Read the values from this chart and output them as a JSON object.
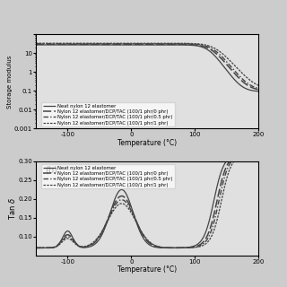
{
  "xlabel": "Temperature (°C)",
  "ylabel_a": "Storage modulus",
  "ylabel_b": "Tan δ",
  "xlim": [
    -150,
    200
  ],
  "ylim_a": [
    0.001,
    100
  ],
  "ylim_b": [
    0.05,
    0.3
  ],
  "legend_labels": [
    "Neat nylon 12 elastomer",
    "Nylon 12 elastomer/DCP/TAC (100/1 phr/0 phr)",
    "Nylon 12 elastomer/DCP/TAC (100/1 phr/0.5 phr)",
    "Nylon 12 elastomer/DCP/TAC (100/1 phr/1 phr)"
  ],
  "gray": "#444444",
  "bg_color": "#e8e8e8",
  "fig_color": "#d8d8d8",
  "yticks_b": [
    0.1,
    0.15,
    0.2,
    0.25,
    0.3
  ],
  "xticks": [
    -100,
    0,
    100,
    200
  ]
}
